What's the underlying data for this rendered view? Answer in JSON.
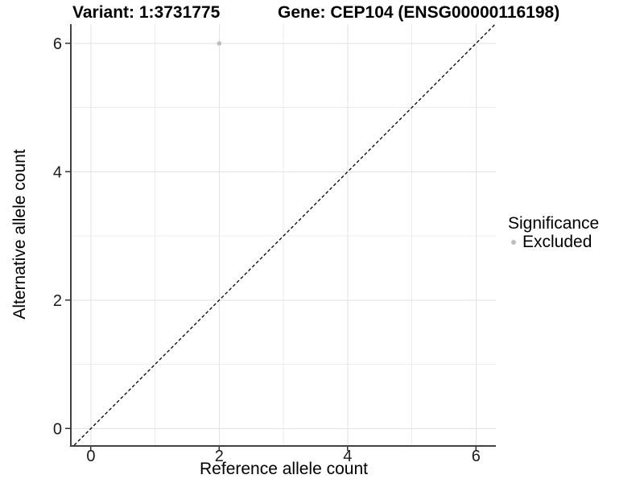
{
  "chart_data": {
    "type": "scatter",
    "title_left": "Variant: 1:3731775",
    "title_right": "Gene: CEP104 (ENSG00000116198)",
    "xlabel": "Reference allele count",
    "ylabel": "Alternative allele count",
    "xlim": [
      -0.3,
      6.31
    ],
    "ylim": [
      -0.26,
      6.3
    ],
    "xticks": [
      0,
      2,
      4,
      6
    ],
    "yticks": [
      0,
      2,
      4,
      6
    ],
    "x_minor_ticks": [
      1,
      3,
      5
    ],
    "y_minor_ticks": [
      1,
      3,
      5
    ],
    "grid": true,
    "legend_position": "right",
    "points": [
      {
        "x": 2,
        "y": 6,
        "series": "Excluded",
        "color": "#bdbdbd"
      }
    ],
    "identity_line": {
      "from": -0.26,
      "to": 6.3,
      "style": "dashed",
      "color": "#000000"
    },
    "legend": {
      "title": "Significance",
      "items": [
        {
          "label": "Excluded",
          "color": "#bdbdbd",
          "marker": "dot"
        }
      ]
    },
    "colors": {
      "point_excluded": "#bdbdbd",
      "grid_major": "#e2e2e2",
      "grid_minor": "#ececec",
      "axis_line": "#424242",
      "tick_mark": "#333333",
      "tick_label": "#1a1a1a",
      "text": "#000000",
      "background": "#ffffff"
    }
  }
}
